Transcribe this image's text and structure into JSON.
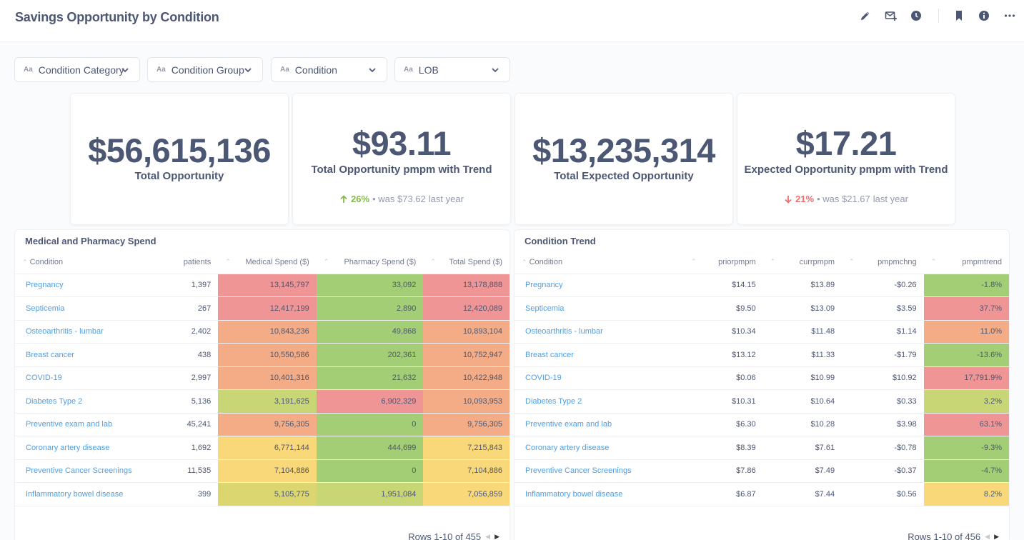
{
  "header": {
    "title": "Savings Opportunity by Condition",
    "icons": [
      "pencil-icon",
      "subscribe-icon",
      "history-icon",
      "bookmark-icon",
      "info-icon",
      "more-icon"
    ]
  },
  "filters": [
    {
      "type_icon": "Aa",
      "label": "Condition Category"
    },
    {
      "type_icon": "Aa",
      "label": "Condition Group"
    },
    {
      "type_icon": "Aa",
      "label": "Condition"
    },
    {
      "type_icon": "Aa",
      "label": "LOB"
    }
  ],
  "kpis": [
    {
      "value": "$56,615,136",
      "label": "Total Opportunity"
    },
    {
      "value": "$93.11",
      "label": "Total Opportunity pmpm with Trend",
      "change": "26%",
      "direction": "up",
      "prev_text": "• was $73.62",
      "period": "last year"
    },
    {
      "value": "$13,235,314",
      "label": "Total Expected Opportunity"
    },
    {
      "value": "$17.21",
      "label": "Expected Opportunity pmpm with Trend",
      "change": "21%",
      "direction": "down",
      "prev_text": "• was $21.67",
      "period": "last year"
    }
  ],
  "spend_table": {
    "title": "Medical and Pharmacy Spend",
    "columns": [
      "Condition",
      "patients",
      "Medical Spend ($)",
      "Pharmacy Spend ($)",
      "Total Spend ($)"
    ],
    "rows": [
      {
        "condition": "Pregnancy",
        "patients": "1,397",
        "medical": "13,145,797",
        "pharmacy": "33,092",
        "total": "13,178,888",
        "colors": [
          "#ef9595",
          "#a4ce76",
          "#ef9595"
        ]
      },
      {
        "condition": "Septicemia",
        "patients": "267",
        "medical": "12,417,199",
        "pharmacy": "2,890",
        "total": "12,420,089",
        "colors": [
          "#ef9595",
          "#a4ce76",
          "#ef9595"
        ]
      },
      {
        "condition": "Osteoarthritis - lumbar",
        "patients": "2,402",
        "medical": "10,843,236",
        "pharmacy": "49,868",
        "total": "10,893,104",
        "colors": [
          "#f3ac85",
          "#a4ce76",
          "#f3ac85"
        ]
      },
      {
        "condition": "Breast cancer",
        "patients": "438",
        "medical": "10,550,586",
        "pharmacy": "202,361",
        "total": "10,752,947",
        "colors": [
          "#f3ac85",
          "#a4ce76",
          "#f3ac85"
        ]
      },
      {
        "condition": "COVID-19",
        "patients": "2,997",
        "medical": "10,401,316",
        "pharmacy": "21,632",
        "total": "10,422,948",
        "colors": [
          "#f3ac85",
          "#a4ce76",
          "#f3ac85"
        ]
      },
      {
        "condition": "Diabetes Type 2",
        "patients": "5,136",
        "medical": "3,191,625",
        "pharmacy": "6,902,329",
        "total": "10,093,953",
        "colors": [
          "#c9d675",
          "#ef9595",
          "#f3ac85"
        ]
      },
      {
        "condition": "Preventive exam and lab",
        "patients": "45,241",
        "medical": "9,756,305",
        "pharmacy": "0",
        "total": "9,756,305",
        "colors": [
          "#f3ac85",
          "#a4ce76",
          "#f3ac85"
        ]
      },
      {
        "condition": "Coronary artery disease",
        "patients": "1,692",
        "medical": "6,771,144",
        "pharmacy": "444,699",
        "total": "7,215,843",
        "colors": [
          "#f8d878",
          "#a4ce76",
          "#f8d878"
        ]
      },
      {
        "condition": "Preventive Cancer Screenings",
        "patients": "11,535",
        "medical": "7,104,886",
        "pharmacy": "0",
        "total": "7,104,886",
        "colors": [
          "#f8d878",
          "#a4ce76",
          "#f8d878"
        ]
      },
      {
        "condition": "Inflammatory bowel disease",
        "patients": "399",
        "medical": "5,105,775",
        "pharmacy": "1,951,084",
        "total": "7,056,859",
        "colors": [
          "#dcd670",
          "#c9d675",
          "#f8d878"
        ]
      }
    ],
    "pager": "Rows 1-10 of 455"
  },
  "trend_table": {
    "title": "Condition Trend",
    "columns": [
      "Condition",
      "priorpmpm",
      "currpmpm",
      "pmpmchng",
      "pmpmtrend"
    ],
    "rows": [
      {
        "condition": "Pregnancy",
        "prior": "$14.15",
        "curr": "$13.89",
        "chng": "-$0.26",
        "trend": "-1.8%",
        "color": "#a4ce76"
      },
      {
        "condition": "Septicemia",
        "prior": "$9.50",
        "curr": "$13.09",
        "chng": "$3.59",
        "trend": "37.7%",
        "color": "#ef9595"
      },
      {
        "condition": "Osteoarthritis - lumbar",
        "prior": "$10.34",
        "curr": "$11.48",
        "chng": "$1.14",
        "trend": "11.0%",
        "color": "#f3ac85"
      },
      {
        "condition": "Breast cancer",
        "prior": "$13.12",
        "curr": "$11.33",
        "chng": "-$1.79",
        "trend": "-13.6%",
        "color": "#a4ce76"
      },
      {
        "condition": "COVID-19",
        "prior": "$0.06",
        "curr": "$10.99",
        "chng": "$10.92",
        "trend": "17,791.9%",
        "color": "#ef9595"
      },
      {
        "condition": "Diabetes Type 2",
        "prior": "$10.31",
        "curr": "$10.64",
        "chng": "$0.33",
        "trend": "3.2%",
        "color": "#c9d675"
      },
      {
        "condition": "Preventive exam and lab",
        "prior": "$6.30",
        "curr": "$10.28",
        "chng": "$3.98",
        "trend": "63.1%",
        "color": "#ef9595"
      },
      {
        "condition": "Coronary artery disease",
        "prior": "$8.39",
        "curr": "$7.61",
        "chng": "-$0.78",
        "trend": "-9.3%",
        "color": "#a4ce76"
      },
      {
        "condition": "Preventive Cancer Screenings",
        "prior": "$7.86",
        "curr": "$7.49",
        "chng": "-$0.37",
        "trend": "-4.7%",
        "color": "#a4ce76"
      },
      {
        "condition": "Inflammatory bowel disease",
        "prior": "$6.87",
        "curr": "$7.44",
        "chng": "$0.56",
        "trend": "8.2%",
        "color": "#f8d878"
      }
    ],
    "pager": "Rows 1-10 of 456"
  }
}
